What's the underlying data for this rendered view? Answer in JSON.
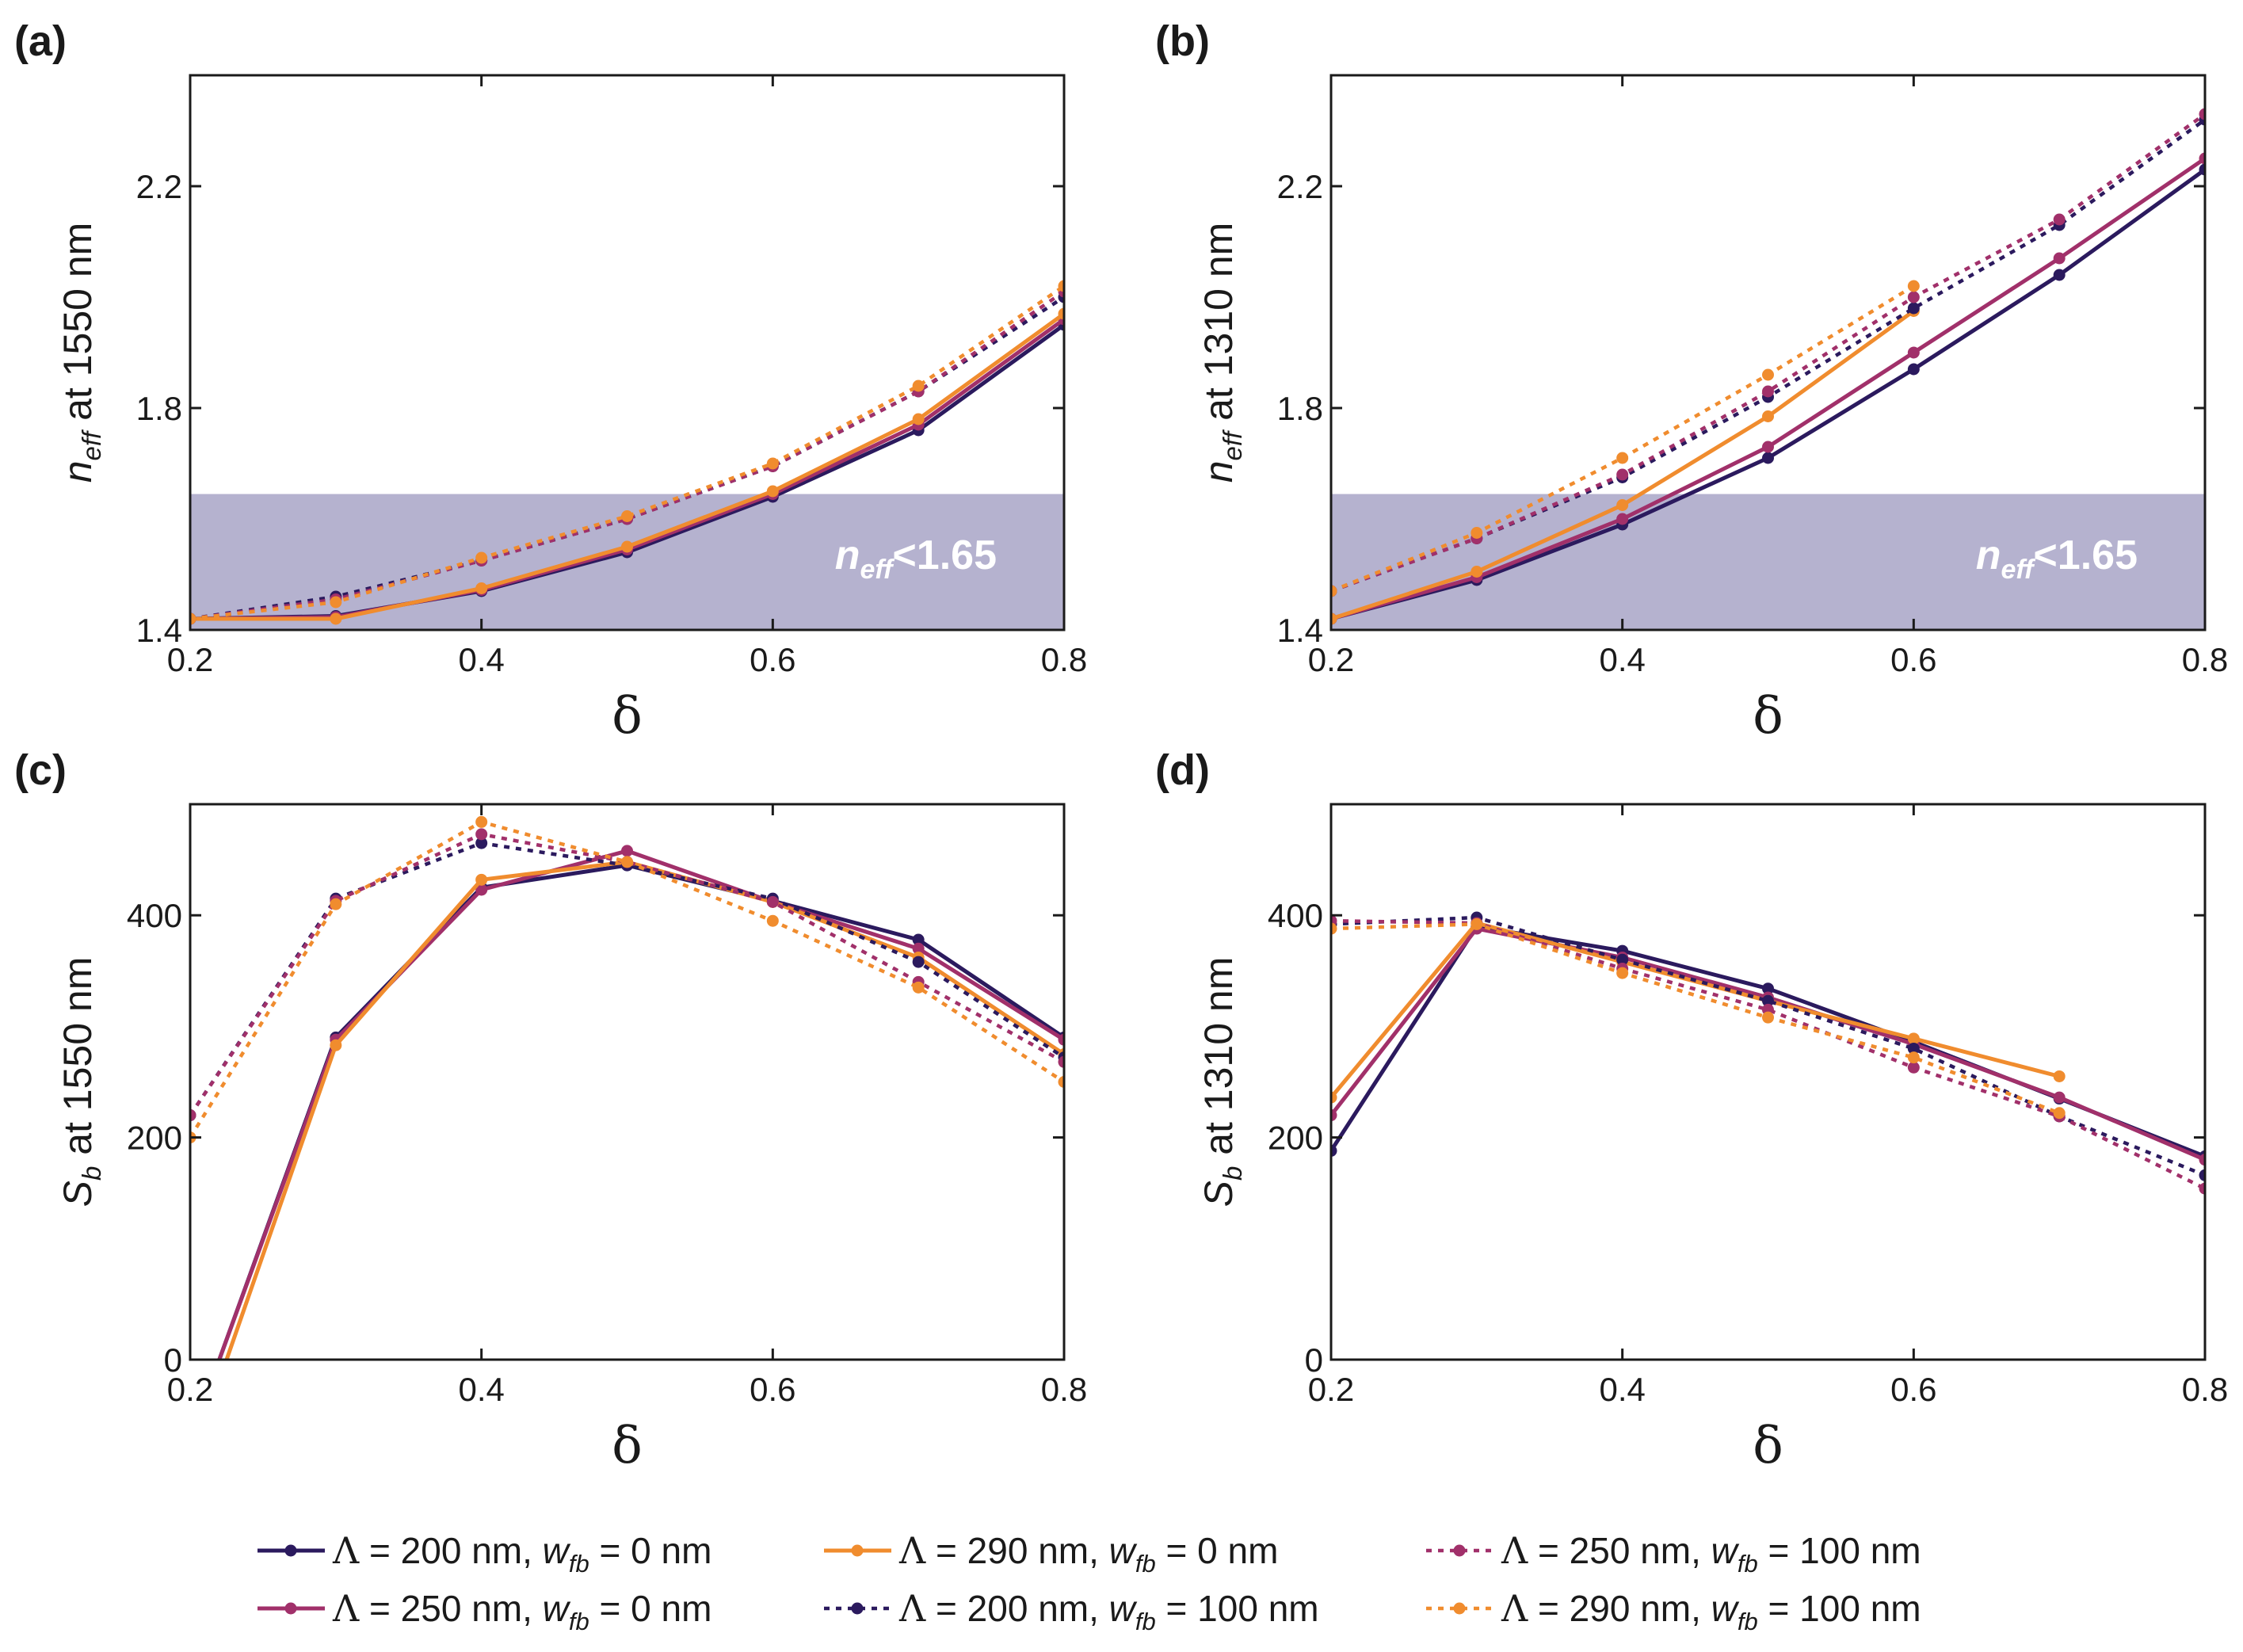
{
  "colors": {
    "s200": "#2b1a5e",
    "s250": "#a1306a",
    "s290": "#f08c2e",
    "shade": "#b5b2cf",
    "frame": "#1a1a1a"
  },
  "legend": [
    {
      "series": "s200_0",
      "lambda": "200",
      "wfb": "0",
      "unit": "nm"
    },
    {
      "series": "s250_0",
      "lambda": "250",
      "wfb": "0",
      "unit": "nm"
    },
    {
      "series": "s290_0",
      "lambda": "290",
      "wfb": "0",
      "unit": "nm"
    },
    {
      "series": "s200_100",
      "lambda": "200",
      "wfb": "100",
      "unit": "nm"
    },
    {
      "series": "s250_100",
      "lambda": "250",
      "wfb": "100",
      "unit": "nm"
    },
    {
      "series": "s290_100",
      "lambda": "290",
      "wfb": "100",
      "unit": "nm"
    }
  ],
  "legend_symbol": "Λ",
  "legend_w": "w",
  "legend_w_sub": "fb",
  "chart_data": [
    {
      "id": "a",
      "panel_label": "(a)",
      "type": "line",
      "xlabel": "δ",
      "ylabel_main": "n",
      "ylabel_sub": "eff",
      "ylabel_rest": " at 1550 nm",
      "xlim": [
        0.2,
        0.8
      ],
      "ylim": [
        1.4,
        2.4
      ],
      "xticks": [
        "0.2",
        "0.4",
        "0.6",
        "0.8"
      ],
      "yticks": [
        "1.4",
        "1.8",
        "2.2"
      ],
      "shade": {
        "y_max": 1.645,
        "label_main": "n",
        "label_sub": "eff",
        "label_rest": "<1.65"
      },
      "series": [
        {
          "key": "s200_0",
          "color": "s200",
          "dashed": false,
          "x": [
            0.2,
            0.3,
            0.4,
            0.5,
            0.6,
            0.7,
            0.8
          ],
          "y": [
            1.42,
            1.425,
            1.47,
            1.54,
            1.64,
            1.76,
            1.95
          ]
        },
        {
          "key": "s250_0",
          "color": "s250",
          "dashed": false,
          "x": [
            0.2,
            0.3,
            0.4,
            0.5,
            0.6,
            0.7,
            0.8
          ],
          "y": [
            1.42,
            1.423,
            1.472,
            1.545,
            1.645,
            1.77,
            1.96
          ]
        },
        {
          "key": "s290_0",
          "color": "s290",
          "dashed": false,
          "x": [
            0.2,
            0.3,
            0.4,
            0.5,
            0.6,
            0.7,
            0.8
          ],
          "y": [
            1.42,
            1.42,
            1.475,
            1.55,
            1.65,
            1.78,
            1.97
          ]
        },
        {
          "key": "s200_100",
          "color": "s200",
          "dashed": true,
          "x": [
            0.2,
            0.3,
            0.4,
            0.5,
            0.6,
            0.7,
            0.8
          ],
          "y": [
            1.42,
            1.46,
            1.525,
            1.6,
            1.695,
            1.83,
            2.0
          ]
        },
        {
          "key": "s250_100",
          "color": "s250",
          "dashed": true,
          "x": [
            0.2,
            0.3,
            0.4,
            0.5,
            0.6,
            0.7,
            0.8
          ],
          "y": [
            1.42,
            1.455,
            1.525,
            1.6,
            1.695,
            1.83,
            2.01
          ]
        },
        {
          "key": "s290_100",
          "color": "s290",
          "dashed": true,
          "x": [
            0.2,
            0.3,
            0.4,
            0.5,
            0.6,
            0.7,
            0.8
          ],
          "y": [
            1.42,
            1.45,
            1.53,
            1.605,
            1.7,
            1.84,
            2.02
          ]
        }
      ]
    },
    {
      "id": "b",
      "panel_label": "(b)",
      "type": "line",
      "xlabel": "δ",
      "ylabel_main": "n",
      "ylabel_sub": "eff",
      "ylabel_rest": " at 1310 nm",
      "xlim": [
        0.2,
        0.8
      ],
      "ylim": [
        1.4,
        2.4
      ],
      "xticks": [
        "0.2",
        "0.4",
        "0.6",
        "0.8"
      ],
      "yticks": [
        "1.4",
        "1.8",
        "2.2"
      ],
      "shade": {
        "y_max": 1.645,
        "label_main": "n",
        "label_sub": "eff",
        "label_rest": "<1.65"
      },
      "series": [
        {
          "key": "s200_0",
          "color": "s200",
          "dashed": false,
          "x": [
            0.2,
            0.3,
            0.4,
            0.5,
            0.6,
            0.7,
            0.8
          ],
          "y": [
            1.42,
            1.49,
            1.59,
            1.71,
            1.87,
            2.04,
            2.23
          ]
        },
        {
          "key": "s250_0",
          "color": "s250",
          "dashed": false,
          "x": [
            0.2,
            0.3,
            0.4,
            0.5,
            0.6,
            0.7,
            0.8
          ],
          "y": [
            1.42,
            1.495,
            1.6,
            1.73,
            1.9,
            2.07,
            2.25
          ]
        },
        {
          "key": "s290_0",
          "color": "s290",
          "dashed": false,
          "x": [
            0.2,
            0.3,
            0.4,
            0.5,
            0.6
          ],
          "y": [
            1.42,
            1.505,
            1.625,
            1.785,
            1.975
          ]
        },
        {
          "key": "s200_100",
          "color": "s200",
          "dashed": true,
          "x": [
            0.2,
            0.3,
            0.4,
            0.5,
            0.6,
            0.7,
            0.8
          ],
          "y": [
            1.47,
            1.565,
            1.675,
            1.82,
            1.98,
            2.13,
            2.32
          ]
        },
        {
          "key": "s250_100",
          "color": "s250",
          "dashed": true,
          "x": [
            0.2,
            0.3,
            0.4,
            0.5,
            0.6,
            0.7,
            0.8
          ],
          "y": [
            1.47,
            1.565,
            1.68,
            1.83,
            2.0,
            2.14,
            2.33
          ]
        },
        {
          "key": "s290_100",
          "color": "s290",
          "dashed": true,
          "x": [
            0.2,
            0.3,
            0.4,
            0.5,
            0.6
          ],
          "y": [
            1.47,
            1.575,
            1.71,
            1.86,
            2.02
          ]
        }
      ]
    },
    {
      "id": "c",
      "panel_label": "(c)",
      "type": "line",
      "xlabel": "δ",
      "ylabel_main": "S",
      "ylabel_sub": "b",
      "ylabel_rest": " at 1550 nm",
      "xlim": [
        0.2,
        0.8
      ],
      "ylim": [
        0,
        500
      ],
      "xticks": [
        "0.2",
        "0.4",
        "0.6",
        "0.8"
      ],
      "yticks": [
        "0",
        "200",
        "400"
      ],
      "shade": null,
      "series": [
        {
          "key": "s200_0",
          "color": "s200",
          "dashed": false,
          "x": [
            0.22,
            0.3,
            0.4,
            0.5,
            0.6,
            0.7,
            0.8
          ],
          "y": [
            0,
            290,
            425,
            445,
            413,
            378,
            290
          ],
          "first_marker": false
        },
        {
          "key": "s250_0",
          "color": "s250",
          "dashed": false,
          "x": [
            0.22,
            0.3,
            0.4,
            0.5,
            0.6,
            0.7,
            0.8
          ],
          "y": [
            0,
            288,
            423,
            458,
            412,
            370,
            288
          ],
          "first_marker": false
        },
        {
          "key": "s290_0",
          "color": "s290",
          "dashed": false,
          "x": [
            0.225,
            0.3,
            0.4,
            0.5,
            0.6,
            0.7,
            0.8
          ],
          "y": [
            0,
            283,
            432,
            448,
            412,
            362,
            275
          ],
          "first_marker": false
        },
        {
          "key": "s200_100",
          "color": "s200",
          "dashed": true,
          "x": [
            0.2,
            0.3,
            0.4,
            0.5,
            0.6,
            0.7,
            0.8
          ],
          "y": [
            220,
            415,
            465,
            445,
            415,
            358,
            272
          ]
        },
        {
          "key": "s250_100",
          "color": "s250",
          "dashed": true,
          "x": [
            0.2,
            0.3,
            0.4,
            0.5,
            0.6,
            0.7,
            0.8
          ],
          "y": [
            220,
            413,
            473,
            448,
            412,
            340,
            268
          ]
        },
        {
          "key": "s290_100",
          "color": "s290",
          "dashed": true,
          "x": [
            0.2,
            0.3,
            0.4,
            0.5,
            0.6,
            0.7,
            0.8
          ],
          "y": [
            200,
            410,
            484,
            448,
            395,
            335,
            250
          ]
        }
      ]
    },
    {
      "id": "d",
      "panel_label": "(d)",
      "type": "line",
      "xlabel": "δ",
      "ylabel_main": "S",
      "ylabel_sub": "b",
      "ylabel_rest": " at 1310 nm",
      "xlim": [
        0.2,
        0.8
      ],
      "ylim": [
        0,
        500
      ],
      "xticks": [
        "0.2",
        "0.4",
        "0.6",
        "0.8"
      ],
      "yticks": [
        "0",
        "200",
        "400"
      ],
      "shade": null,
      "series": [
        {
          "key": "s200_0",
          "color": "s200",
          "dashed": false,
          "x": [
            0.2,
            0.3,
            0.4,
            0.5,
            0.6,
            0.7,
            0.8
          ],
          "y": [
            188,
            390,
            368,
            334,
            286,
            235,
            183
          ]
        },
        {
          "key": "s250_0",
          "color": "s250",
          "dashed": false,
          "x": [
            0.2,
            0.3,
            0.4,
            0.5,
            0.6,
            0.7,
            0.8
          ],
          "y": [
            220,
            388,
            362,
            326,
            284,
            236,
            180
          ]
        },
        {
          "key": "s290_0",
          "color": "s290",
          "dashed": false,
          "x": [
            0.2,
            0.3,
            0.4,
            0.5,
            0.6,
            0.7
          ],
          "y": [
            236,
            393,
            358,
            323,
            289,
            255
          ]
        },
        {
          "key": "s200_100",
          "color": "s200",
          "dashed": true,
          "x": [
            0.2,
            0.3,
            0.4,
            0.5,
            0.6,
            0.7,
            0.8
          ],
          "y": [
            392,
            398,
            360,
            323,
            280,
            219,
            166
          ]
        },
        {
          "key": "s250_100",
          "color": "s250",
          "dashed": true,
          "x": [
            0.2,
            0.3,
            0.4,
            0.5,
            0.6,
            0.7,
            0.8
          ],
          "y": [
            395,
            393,
            352,
            315,
            263,
            219,
            154
          ]
        },
        {
          "key": "s290_100",
          "color": "s290",
          "dashed": true,
          "x": [
            0.2,
            0.3,
            0.4,
            0.5,
            0.6,
            0.7
          ],
          "y": [
            388,
            392,
            348,
            308,
            272,
            222
          ]
        }
      ]
    }
  ]
}
